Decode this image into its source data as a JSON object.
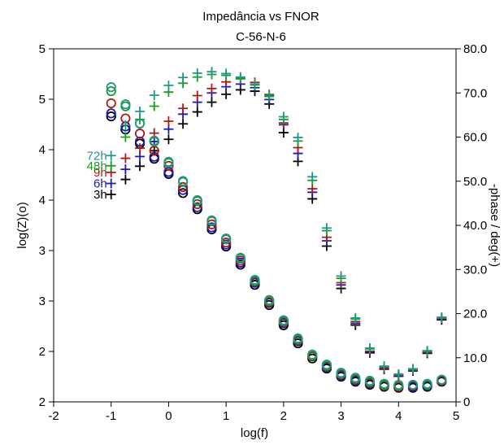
{
  "chart_data": {
    "type": "scatter",
    "title": "Impedância vs FNOR",
    "subtitle": "C-56-N-6",
    "xlabel": "log(f)",
    "ylabel_left": "log(Z)(o)",
    "ylabel_right": "-phase / deg(+)",
    "xlim": [
      -2,
      5
    ],
    "ylim_left": [
      2,
      5.5
    ],
    "ylim_right": [
      0,
      80
    ],
    "x_ticks": [
      "-2",
      "-1",
      "0",
      "1",
      "2",
      "3",
      "4",
      "5"
    ],
    "y_left_ticks": [
      "2",
      "2",
      "3",
      "3",
      "4",
      "4",
      "5",
      "5"
    ],
    "y_right_ticks": [
      "0",
      "10.0",
      "20.0",
      "30.0",
      "40.0",
      "50.0",
      "60.0",
      "70.0",
      "80.0"
    ],
    "x": [
      -1,
      -0.75,
      -0.5,
      -0.25,
      0,
      0.25,
      0.5,
      0.75,
      1,
      1.25,
      1.5,
      1.75,
      2,
      2.25,
      2.5,
      2.75,
      3,
      3.25,
      3.5,
      3.75,
      4,
      4.25,
      4.5,
      4.75
    ],
    "series": [
      {
        "name": "3h",
        "color": "#000000",
        "logZ": [
          4.83,
          4.7,
          4.56,
          4.41,
          4.26,
          4.07,
          3.91,
          3.71,
          3.54,
          3.36,
          3.16,
          2.96,
          2.76,
          2.58,
          2.43,
          2.33,
          2.25,
          2.2,
          2.17,
          2.15,
          2.14,
          2.14,
          2.15,
          2.2
        ],
        "phase": [
          47.0,
          50.4,
          53.4,
          56.9,
          59.5,
          63.0,
          65.7,
          67.9,
          69.7,
          70.7,
          70.4,
          67.5,
          61.0,
          54.5,
          46.0,
          35.3,
          25.7,
          17.4,
          11.1,
          7.4,
          5.8,
          7.0,
          11.0,
          18.6
        ]
      },
      {
        "name": "6h",
        "color": "#1a1ab8",
        "logZ": [
          4.86,
          4.73,
          4.58,
          4.43,
          4.28,
          4.1,
          3.93,
          3.73,
          3.56,
          3.38,
          3.18,
          2.98,
          2.78,
          2.6,
          2.45,
          2.34,
          2.26,
          2.21,
          2.18,
          2.16,
          2.15,
          2.15,
          2.16,
          2.21
        ],
        "phase": [
          49.5,
          52.7,
          55.6,
          59.0,
          61.8,
          65.2,
          67.9,
          70.0,
          71.4,
          72.0,
          71.2,
          68.5,
          62.8,
          56.3,
          47.5,
          36.5,
          26.5,
          17.8,
          11.3,
          7.5,
          5.9,
          7.1,
          11.1,
          18.8
        ]
      },
      {
        "name": "9h",
        "color": "#b01818",
        "logZ": [
          4.96,
          4.81,
          4.66,
          4.49,
          4.34,
          4.13,
          3.96,
          3.76,
          3.58,
          3.4,
          3.19,
          2.99,
          2.79,
          2.61,
          2.45,
          2.35,
          2.27,
          2.22,
          2.19,
          2.16,
          2.15,
          2.16,
          2.17,
          2.21
        ],
        "phase": [
          52.0,
          55.2,
          57.5,
          60.9,
          63.6,
          66.5,
          69.4,
          71.0,
          72.5,
          73.2,
          72.4,
          69.5,
          63.2,
          57.6,
          48.3,
          37.3,
          27.0,
          18.2,
          11.5,
          7.7,
          6.0,
          7.2,
          11.3,
          18.9
        ]
      },
      {
        "name": "48h",
        "color": "#1e9a1e",
        "logZ": [
          5.08,
          4.93,
          4.76,
          4.58,
          4.37,
          4.18,
          3.99,
          3.79,
          3.61,
          3.42,
          3.2,
          3.0,
          2.8,
          2.62,
          2.46,
          2.36,
          2.28,
          2.23,
          2.2,
          2.17,
          2.16,
          2.17,
          2.17,
          2.22
        ],
        "phase": [
          53.5,
          60.0,
          64.0,
          67.0,
          70.2,
          72.2,
          73.6,
          74.2,
          74.0,
          73.3,
          71.8,
          69.2,
          64.0,
          59.1,
          50.2,
          38.8,
          28.0,
          18.8,
          12.0,
          8.0,
          6.2,
          7.4,
          11.5,
          19.0
        ]
      },
      {
        "name": "72h",
        "color": "#1a9a8a",
        "logZ": [
          5.12,
          4.95,
          4.76,
          4.59,
          4.38,
          4.19,
          4.0,
          3.8,
          3.62,
          3.43,
          3.21,
          3.01,
          2.81,
          2.63,
          2.47,
          2.37,
          2.29,
          2.24,
          2.21,
          2.18,
          2.17,
          2.17,
          2.18,
          2.22
        ],
        "phase": [
          55.8,
          62.7,
          65.8,
          69.5,
          71.7,
          73.5,
          74.5,
          74.8,
          74.4,
          73.6,
          72.0,
          69.7,
          64.6,
          59.9,
          51.0,
          39.4,
          28.5,
          19.0,
          12.2,
          8.1,
          6.3,
          7.5,
          11.6,
          19.2
        ]
      }
    ],
    "grid": false,
    "legend": "inline labels on left"
  }
}
